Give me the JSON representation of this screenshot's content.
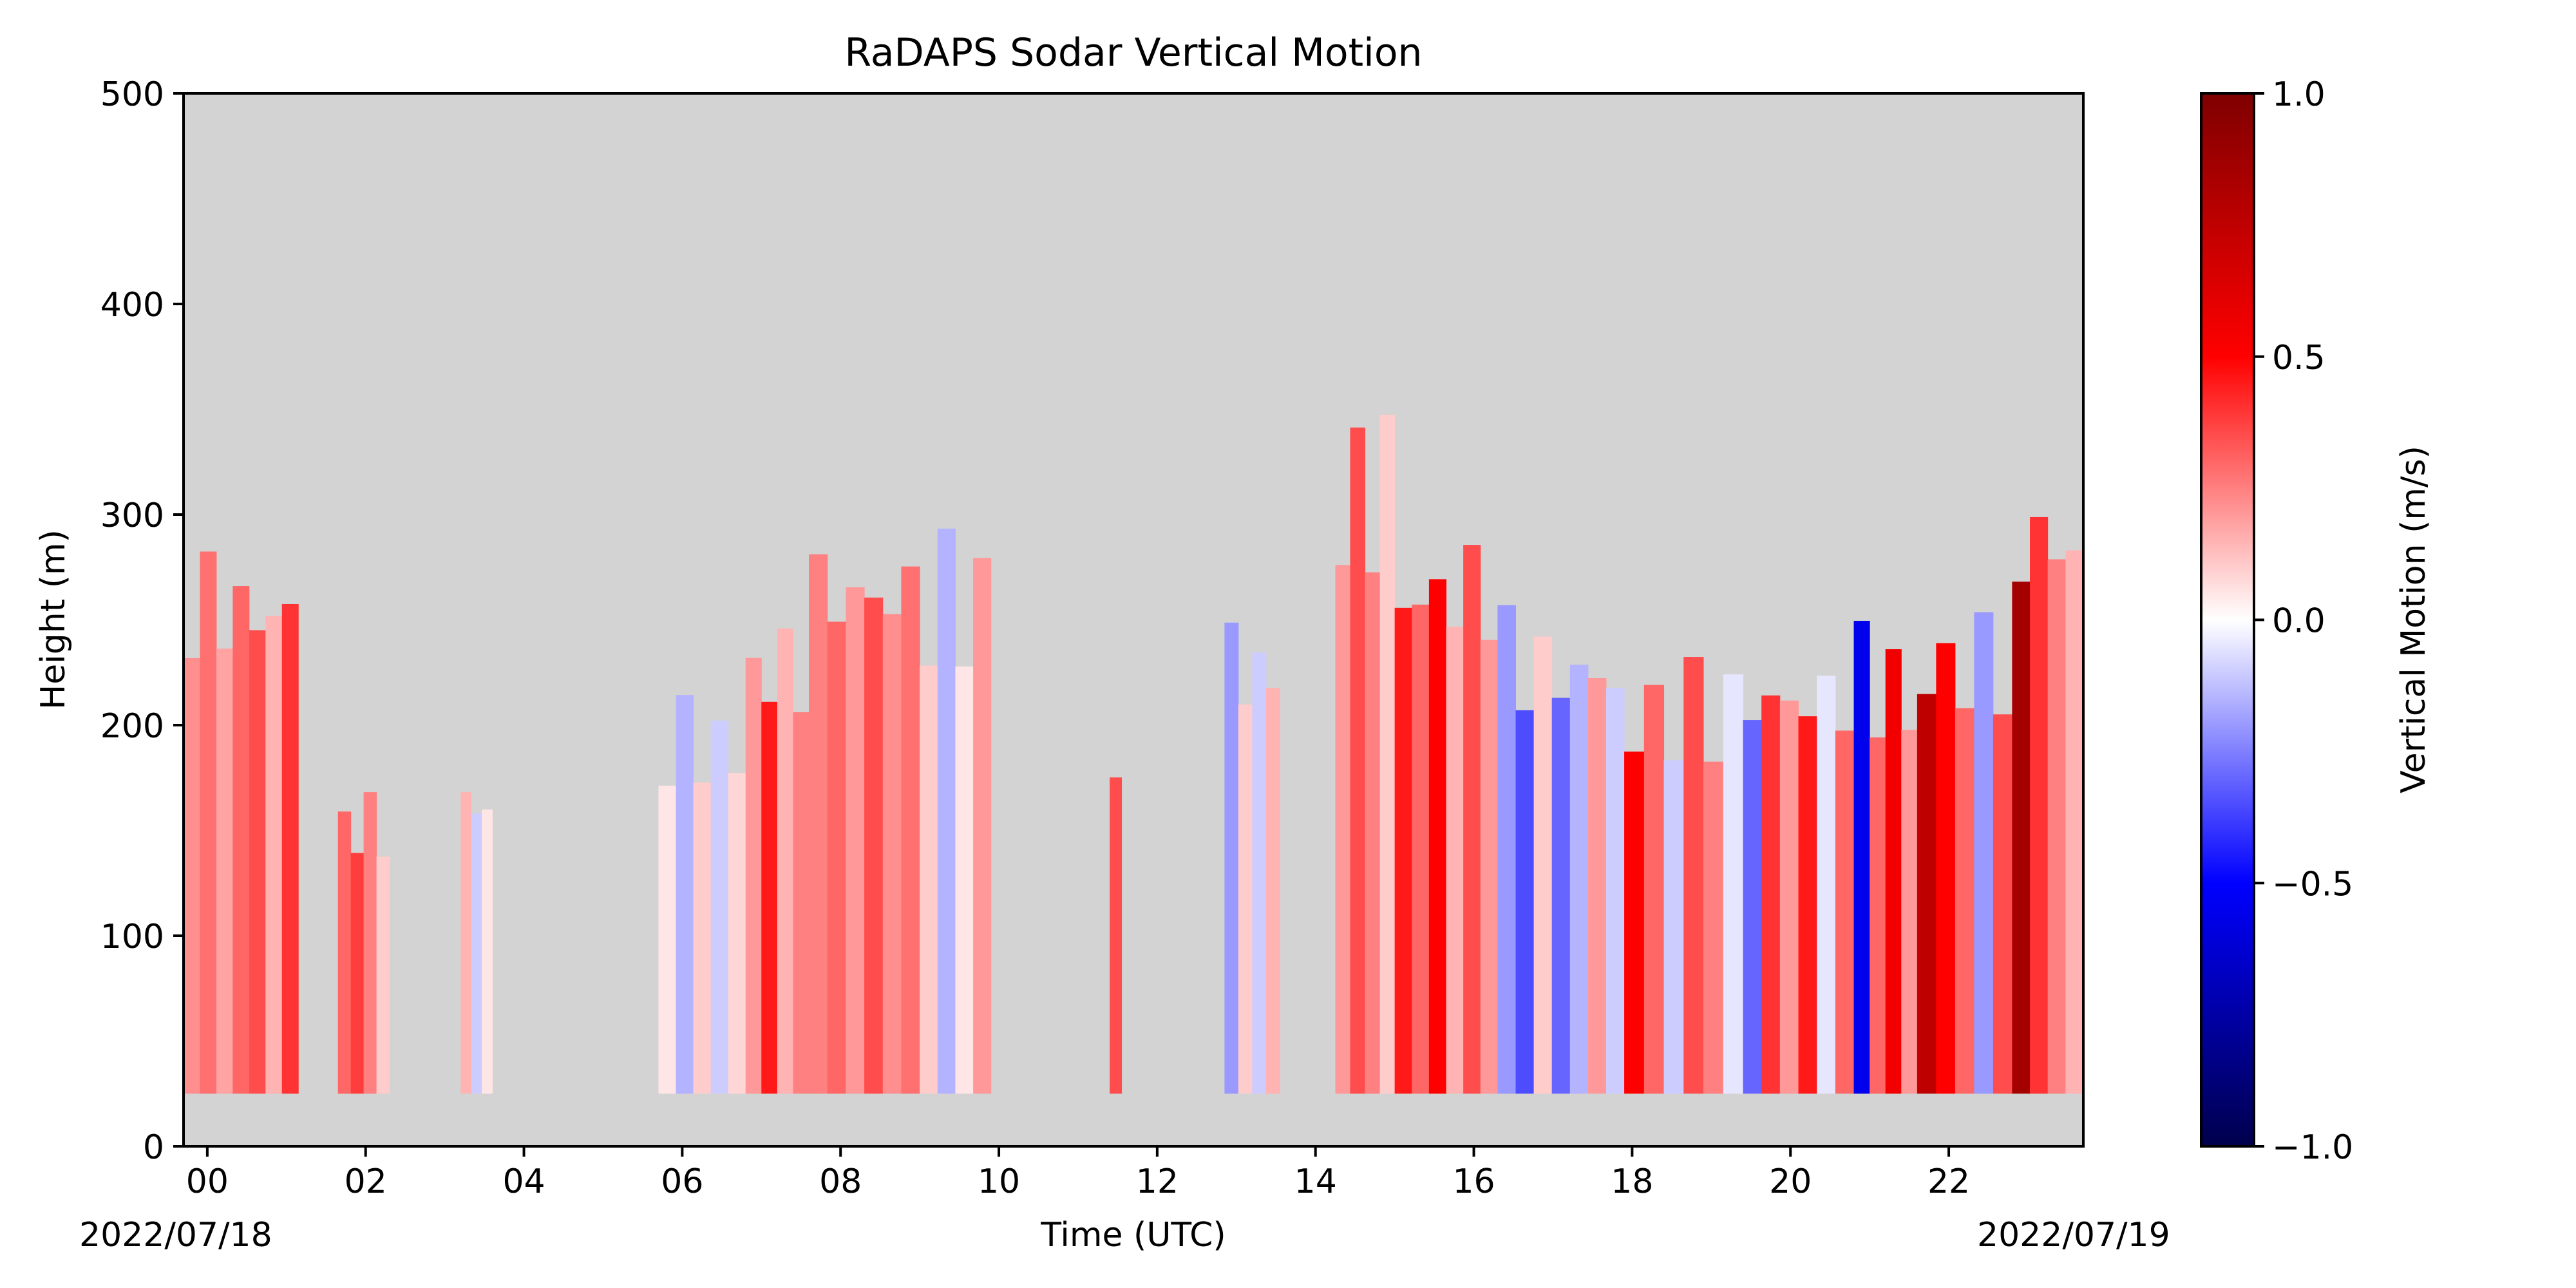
{
  "chart_data": {
    "type": "heatmap",
    "title": "RaDAPS Sodar Vertical Motion",
    "xlabel": "Time (UTC)",
    "ylabel": "Height (m)",
    "xlim": [
      -0.3,
      23.7
    ],
    "ylim": [
      0,
      500
    ],
    "x_tick_labels": [
      "00",
      "02",
      "04",
      "06",
      "08",
      "10",
      "12",
      "14",
      "16",
      "18",
      "20",
      "22"
    ],
    "x_tick_values": [
      0,
      2,
      4,
      6,
      8,
      10,
      12,
      14,
      16,
      18,
      20,
      22
    ],
    "y_ticks": [
      0,
      100,
      200,
      300,
      400,
      500
    ],
    "date_labels": {
      "start": "2022/07/18",
      "end": "2022/07/19"
    },
    "background_color": "#d3d3d3",
    "colorbar": {
      "label": "Vertical Motion (m/s)",
      "range": [
        -1.0,
        1.0
      ],
      "ticks": [
        1.0,
        0.5,
        0.0,
        -0.5,
        -1.0
      ],
      "tick_labels": [
        "1.0",
        "0.5",
        "0.0",
        "−0.5",
        "−1.0"
      ],
      "colormap": "seismic",
      "colors": [
        "#00004c",
        "#0000ff",
        "#ffffff",
        "#ff0000",
        "#7f0000"
      ]
    },
    "min_height_m": 25,
    "data_columns": [
      {
        "start": -0.3,
        "end": 1.15,
        "top_m": 300,
        "values": [
          0.22,
          0.28,
          0.18,
          0.3,
          0.35,
          0.15,
          0.4
        ]
      },
      {
        "start": 1.65,
        "end": 2.3,
        "top_m": 175,
        "values": [
          0.3,
          0.38,
          0.25,
          0.1
        ]
      },
      {
        "start": 3.2,
        "end": 3.6,
        "top_m": 190,
        "values": [
          0.15,
          -0.1,
          0.05
        ]
      },
      {
        "start": 5.7,
        "end": 6.8,
        "top_m": 220,
        "values": [
          0.05,
          -0.15,
          0.1,
          -0.1,
          0.08
        ]
      },
      {
        "start": 6.8,
        "end": 7.6,
        "top_m": 265,
        "values": [
          0.2,
          0.45,
          0.15,
          0.25
        ]
      },
      {
        "start": 7.6,
        "end": 9.0,
        "top_m": 310,
        "values": [
          0.25,
          0.3,
          0.2,
          0.35,
          0.22,
          0.28
        ]
      },
      {
        "start": 9.0,
        "end": 9.9,
        "top_m": 295,
        "values": [
          0.1,
          -0.15,
          0.05,
          0.2
        ]
      },
      {
        "start": 11.4,
        "end": 11.55,
        "top_m": 205,
        "values": [
          0.35
        ]
      },
      {
        "start": 12.85,
        "end": 13.55,
        "top_m": 265,
        "values": [
          -0.2,
          0.1,
          -0.1,
          0.15
        ]
      },
      {
        "start": 14.25,
        "end": 15.0,
        "top_m": 355,
        "values": [
          0.2,
          0.35,
          0.25,
          0.1
        ]
      },
      {
        "start": 15.0,
        "end": 16.3,
        "top_m": 310,
        "values": [
          0.45,
          0.3,
          0.5,
          0.15,
          0.35,
          0.2
        ]
      },
      {
        "start": 16.3,
        "end": 17.9,
        "top_m": 265,
        "values": [
          -0.2,
          -0.35,
          0.1,
          -0.3,
          -0.15,
          0.2,
          -0.1
        ]
      },
      {
        "start": 17.9,
        "end": 19.4,
        "top_m": 235,
        "values": [
          0.5,
          0.3,
          -0.1,
          0.35,
          0.25,
          -0.05
        ]
      },
      {
        "start": 19.4,
        "end": 20.8,
        "top_m": 250,
        "values": [
          -0.3,
          0.4,
          0.2,
          0.45,
          -0.05,
          0.3
        ]
      },
      {
        "start": 20.8,
        "end": 21.6,
        "top_m": 250,
        "values": [
          -0.55,
          0.3,
          0.55,
          0.2
        ]
      },
      {
        "start": 21.6,
        "end": 22.8,
        "top_m": 265,
        "values": [
          0.75,
          0.5,
          0.3,
          -0.2,
          0.35
        ]
      },
      {
        "start": 22.8,
        "end": 23.7,
        "top_m": 340,
        "values": [
          0.85,
          0.4,
          0.25,
          0.15
        ]
      }
    ]
  }
}
